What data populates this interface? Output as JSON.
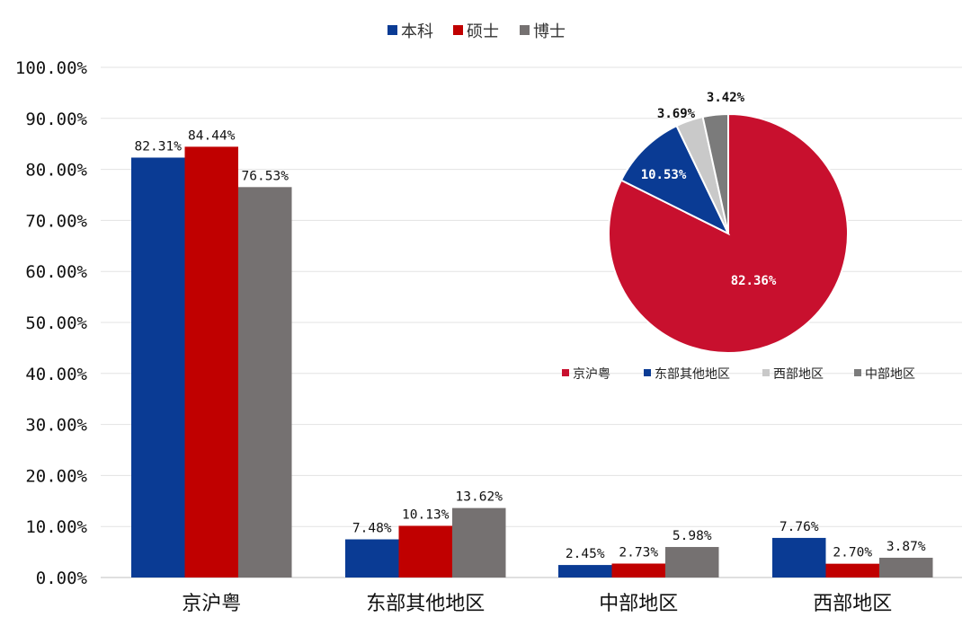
{
  "chart_data": [
    {
      "type": "bar",
      "categories": [
        "京沪粤",
        "东部其他地区",
        "中部地区",
        "西部地区"
      ],
      "series": [
        {
          "name": "本科",
          "values": [
            82.31,
            7.48,
            2.45,
            7.76
          ],
          "labels": [
            "82.31%",
            "7.48%",
            "2.45%",
            "7.76%"
          ],
          "color": "#0a3b94"
        },
        {
          "name": "硕士",
          "values": [
            84.44,
            10.13,
            2.73,
            2.7
          ],
          "labels": [
            "84.44%",
            "10.13%",
            "2.73%",
            "2.70%"
          ],
          "color": "#c00000"
        },
        {
          "name": "博士",
          "values": [
            76.53,
            13.62,
            5.98,
            3.87
          ],
          "labels": [
            "76.53%",
            "13.62%",
            "5.98%",
            "3.87%"
          ],
          "color": "#757171"
        }
      ],
      "y_ticks": [
        "0.00%",
        "10.00%",
        "20.00%",
        "30.00%",
        "40.00%",
        "50.00%",
        "60.00%",
        "70.00%",
        "80.00%",
        "90.00%",
        "100.00%"
      ],
      "ylim": [
        0,
        100
      ],
      "grid": true,
      "legend": "top-center"
    },
    {
      "type": "pie",
      "slices": [
        {
          "name": "京沪粤",
          "value": 82.36,
          "label": "82.36%",
          "color": "#c8102e"
        },
        {
          "name": "东部其他地区",
          "value": 10.53,
          "label": "10.53%",
          "color": "#0a3b94"
        },
        {
          "name": "西部地区",
          "value": 3.69,
          "label": "3.69%",
          "color": "#c9c9c9"
        },
        {
          "name": "中部地区",
          "value": 3.42,
          "label": "3.42%",
          "color": "#7b7b7b"
        }
      ],
      "legend_order": [
        "京沪粤",
        "东部其他地区",
        "西部地区",
        "中部地区"
      ],
      "legend": "bottom"
    }
  ]
}
